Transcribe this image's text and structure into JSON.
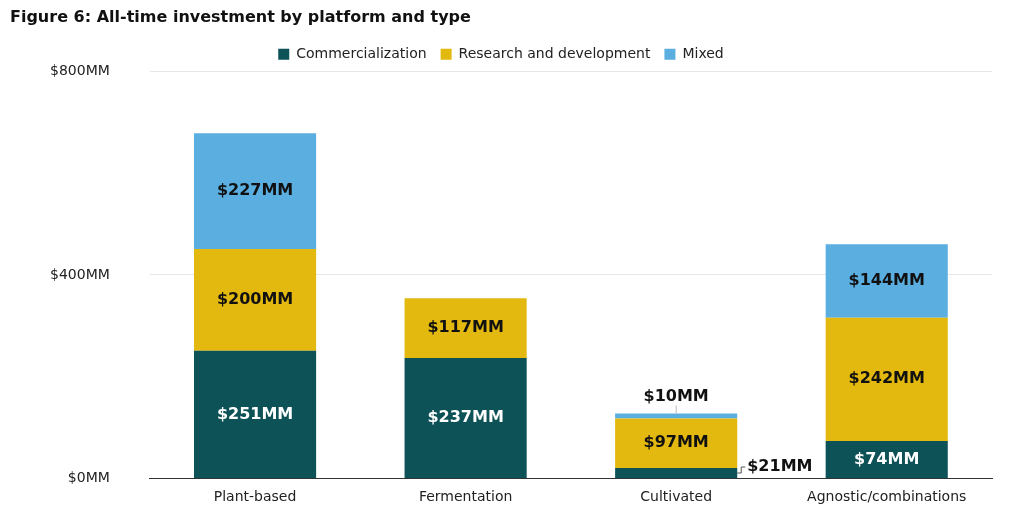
{
  "chart_data": {
    "type": "bar",
    "title": "Figure 6: All-time investment by platform and type",
    "categories": [
      "Plant-based",
      "Fermentation",
      "Cultivated",
      "Agnostic/combinations"
    ],
    "series": [
      {
        "name": "Commercialization",
        "color": "#0d5257",
        "values": [
          251,
          237,
          21,
          74
        ],
        "value_labels": [
          "$251MM",
          "$237MM",
          "$21MM",
          "$74MM"
        ]
      },
      {
        "name": "Research and development",
        "color": "#e3b90f",
        "values": [
          200,
          117,
          97,
          242
        ],
        "value_labels": [
          "$200MM",
          "$117MM",
          "$97MM",
          "$242MM"
        ]
      },
      {
        "name": "Mixed",
        "color": "#5aaee0",
        "values": [
          227,
          null,
          10,
          144
        ],
        "value_labels": [
          "$227MM",
          null,
          "$10MM",
          "$144MM"
        ]
      }
    ],
    "ylim": [
      0,
      800
    ],
    "yticks": [
      {
        "value": 0,
        "label": "$0MM"
      },
      {
        "value": 400,
        "label": "$400MM"
      },
      {
        "value": 800,
        "label": "$800MM"
      }
    ],
    "grid": true,
    "stacked": true,
    "legend": "top",
    "data_labels": true
  }
}
